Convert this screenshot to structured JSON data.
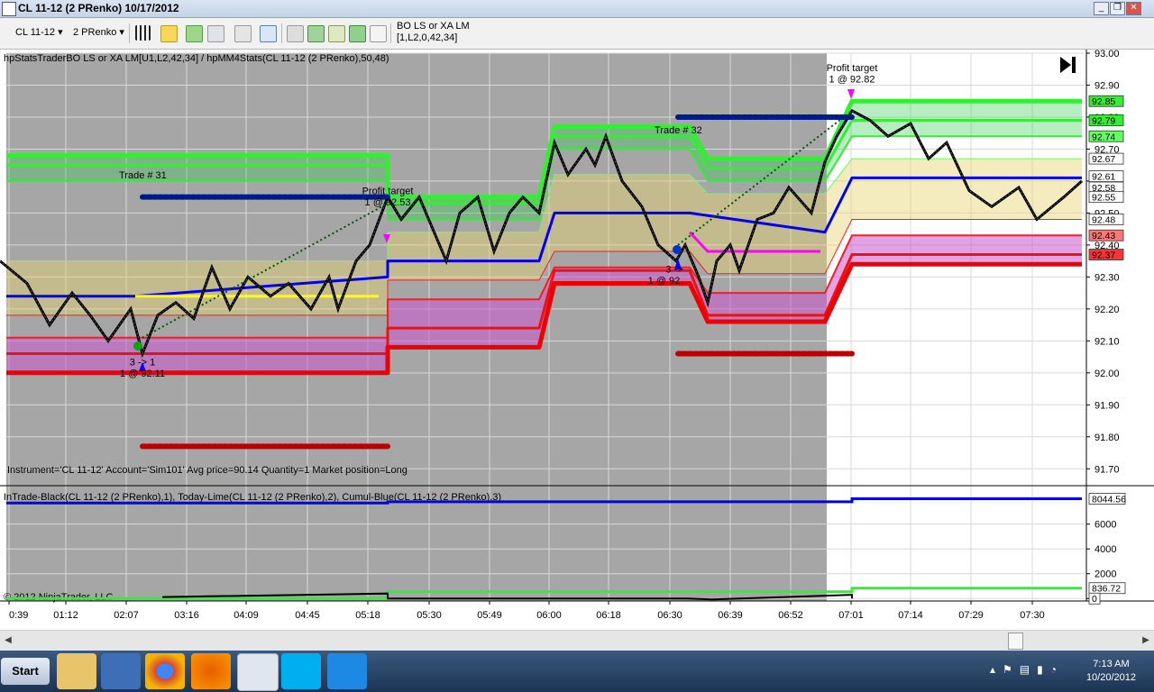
{
  "window": {
    "title": "CL 11-12 (2 PRenko)  10/17/2012"
  },
  "toolbar": {
    "instrument": "CL 11-12",
    "period": "2 PRenko",
    "strategy_name": "BO LS or XA LM",
    "strategy_params": "[1,L2,0,42,34]"
  },
  "chart_data": {
    "type": "line",
    "panel_price": {
      "indicator_title": "hpStatsTraderBO LS or XA LM[U1,L2,42,34] / hpMM4Stats(CL 11-12 (2 PRenko),50,48)",
      "ylim": [
        91.65,
        93.0
      ],
      "yticks": [
        "93.00",
        "92.90",
        "92.80",
        "92.70",
        "92.60",
        "92.50",
        "92.40",
        "92.30",
        "92.20",
        "92.10",
        "92.00",
        "91.90",
        "91.80",
        "91.70"
      ],
      "right_labels": [
        {
          "text": "92.85",
          "value": 92.85,
          "bg": "#33ee33"
        },
        {
          "text": "92.79",
          "value": 92.79,
          "bg": "#33ee33"
        },
        {
          "text": "92.74",
          "value": 92.74,
          "bg": "#66ff66"
        },
        {
          "text": "92.67",
          "value": 92.67,
          "bg": "#ffffff"
        },
        {
          "text": "92.61",
          "value": 92.615,
          "bg": "#ffffff"
        },
        {
          "text": "92.58",
          "value": 92.58,
          "bg": "#ffffff"
        },
        {
          "text": "92.55",
          "value": 92.55,
          "bg": "#ffffff"
        },
        {
          "text": "92.48",
          "value": 92.48,
          "bg": "#ffffff"
        },
        {
          "text": "92.43",
          "value": 92.43,
          "bg": "#ff7777"
        },
        {
          "text": "92.37",
          "value": 92.37,
          "bg": "#ff3333"
        }
      ],
      "annotations": [
        {
          "text": "Profit target",
          "x": "05:22",
          "value": 92.57
        },
        {
          "text": "1 @ 92.53",
          "x": "05:22",
          "value": 92.535
        },
        {
          "text": "Profit target",
          "x": "07:01",
          "value": 92.955
        },
        {
          "text": "1 @ 92.82",
          "x": "07:01",
          "value": 92.92
        },
        {
          "text": "Trade # 31",
          "x": "01:50",
          "value": 92.62
        },
        {
          "text": "Trade # 32",
          "x": "06:27",
          "value": 92.76
        },
        {
          "text": "3 -> 1",
          "x": "02:17",
          "value": 92.035
        },
        {
          "text": "1 @ 92.11",
          "x": "02:17",
          "value": 92.0
        },
        {
          "text": "3 ->",
          "x": "06:32",
          "value": 92.325
        },
        {
          "text": "1 @ 92.",
          "x": "06:31",
          "value": 92.29
        }
      ],
      "info_text": "Instrument='CL 11-12' Account='Sim101' Avg price=90.14 Quantity=1 Market position=Long",
      "price": [
        [
          0,
          92.35
        ],
        [
          30,
          92.28
        ],
        [
          55,
          92.15
        ],
        [
          80,
          92.25
        ],
        [
          100,
          92.18
        ],
        [
          120,
          92.1
        ],
        [
          145,
          92.2
        ],
        [
          158,
          92.06
        ],
        [
          175,
          92.18
        ],
        [
          195,
          92.22
        ],
        [
          215,
          92.17
        ],
        [
          235,
          92.33
        ],
        [
          255,
          92.2
        ],
        [
          275,
          92.3
        ],
        [
          300,
          92.24
        ],
        [
          320,
          92.28
        ],
        [
          345,
          92.2
        ],
        [
          365,
          92.3
        ],
        [
          375,
          92.2
        ],
        [
          395,
          92.35
        ],
        [
          410,
          92.4
        ],
        [
          430,
          92.55
        ],
        [
          445,
          92.48
        ],
        [
          465,
          92.55
        ],
        [
          480,
          92.45
        ],
        [
          495,
          92.35
        ],
        [
          510,
          92.5
        ],
        [
          530,
          92.55
        ],
        [
          548,
          92.38
        ],
        [
          565,
          92.5
        ],
        [
          580,
          92.55
        ],
        [
          598,
          92.5
        ],
        [
          615,
          92.72
        ],
        [
          630,
          92.62
        ],
        [
          650,
          92.7
        ],
        [
          660,
          92.65
        ],
        [
          672,
          92.74
        ],
        [
          690,
          92.6
        ],
        [
          712,
          92.52
        ],
        [
          730,
          92.4
        ],
        [
          750,
          92.35
        ],
        [
          760,
          92.4
        ],
        [
          775,
          92.3
        ],
        [
          785,
          92.22
        ],
        [
          795,
          92.35
        ],
        [
          810,
          92.4
        ],
        [
          820,
          92.32
        ],
        [
          840,
          92.48
        ],
        [
          858,
          92.5
        ],
        [
          875,
          92.58
        ],
        [
          900,
          92.5
        ],
        [
          915,
          92.66
        ],
        [
          928,
          92.74
        ],
        [
          945,
          92.82
        ],
        [
          965,
          92.79
        ],
        [
          985,
          92.74
        ],
        [
          1010,
          92.78
        ],
        [
          1030,
          92.67
        ],
        [
          1050,
          92.72
        ],
        [
          1075,
          92.57
        ],
        [
          1100,
          92.52
        ],
        [
          1130,
          92.58
        ],
        [
          1150,
          92.48
        ],
        [
          1180,
          92.55
        ],
        [
          1200,
          92.6
        ]
      ],
      "levels": [
        {
          "name": "green-top",
          "color": "#33ee33",
          "width": 5,
          "pts": [
            [
              7,
              92.68
            ],
            [
              430,
              92.68
            ],
            [
              430,
              92.55
            ],
            [
              598,
              92.55
            ],
            [
              615,
              92.77
            ],
            [
              765,
              92.77
            ],
            [
              785,
              92.67
            ],
            [
              915,
              92.67
            ],
            [
              945,
              92.85
            ],
            [
              1200,
              92.85
            ]
          ]
        },
        {
          "name": "green-2",
          "color": "#33ee33",
          "width": 3,
          "pts": [
            [
              7,
              92.65
            ],
            [
              430,
              92.65
            ],
            [
              430,
              92.53
            ],
            [
              598,
              92.53
            ],
            [
              615,
              92.74
            ],
            [
              765,
              92.74
            ],
            [
              785,
              92.64
            ],
            [
              915,
              92.64
            ],
            [
              945,
              92.79
            ],
            [
              1200,
              92.79
            ]
          ]
        },
        {
          "name": "green-3",
          "color": "#33ee33",
          "width": 2,
          "pts": [
            [
              7,
              92.6
            ],
            [
              430,
              92.6
            ],
            [
              430,
              92.48
            ],
            [
              598,
              92.48
            ],
            [
              615,
              92.7
            ],
            [
              765,
              92.7
            ],
            [
              785,
              92.6
            ],
            [
              915,
              92.6
            ],
            [
              945,
              92.74
            ],
            [
              1200,
              92.74
            ]
          ]
        },
        {
          "name": "green-4",
          "color": "#66ff66",
          "width": 1,
          "pts": [
            [
              7,
              92.35
            ],
            [
              430,
              92.35
            ],
            [
              430,
              92.44
            ],
            [
              598,
              92.44
            ],
            [
              615,
              92.62
            ],
            [
              765,
              92.62
            ],
            [
              785,
              92.56
            ],
            [
              915,
              92.56
            ],
            [
              945,
              92.67
            ],
            [
              1200,
              92.67
            ]
          ]
        },
        {
          "name": "blue-mid",
          "color": "#0000ee",
          "width": 3,
          "pts": [
            [
              7,
              92.24
            ],
            [
              150,
              92.24
            ],
            [
              430,
              92.3
            ],
            [
              430,
              92.35
            ],
            [
              598,
              92.35
            ],
            [
              615,
              92.5
            ],
            [
              745,
              92.5
            ],
            [
              765,
              92.5
            ],
            [
              765,
              92.5
            ],
            [
              915,
              92.44
            ],
            [
              945,
              92.61
            ],
            [
              1200,
              92.61
            ]
          ]
        },
        {
          "name": "yellow-mid",
          "color": "#ffff00",
          "width": 3,
          "pts": [
            [
              150,
              92.24
            ],
            [
              420,
              92.24
            ]
          ]
        },
        {
          "name": "red-1",
          "color": "#ee2222",
          "width": 1,
          "pts": [
            [
              7,
              92.18
            ],
            [
              430,
              92.18
            ],
            [
              430,
              92.29
            ],
            [
              598,
              92.29
            ],
            [
              615,
              92.38
            ],
            [
              765,
              92.38
            ],
            [
              785,
              92.31
            ],
            [
              915,
              92.31
            ],
            [
              945,
              92.48
            ],
            [
              1200,
              92.48
            ]
          ]
        },
        {
          "name": "red-2",
          "color": "#ee2222",
          "width": 2,
          "pts": [
            [
              7,
              92.11
            ],
            [
              430,
              92.11
            ],
            [
              430,
              92.23
            ],
            [
              598,
              92.23
            ],
            [
              615,
              92.33
            ],
            [
              765,
              92.33
            ],
            [
              785,
              92.25
            ],
            [
              915,
              92.25
            ],
            [
              945,
              92.43
            ],
            [
              1200,
              92.43
            ]
          ]
        },
        {
          "name": "red-3",
          "color": "#ee1111",
          "width": 3,
          "pts": [
            [
              7,
              92.06
            ],
            [
              430,
              92.06
            ],
            [
              430,
              92.14
            ],
            [
              598,
              92.14
            ],
            [
              615,
              92.32
            ],
            [
              765,
              92.32
            ],
            [
              785,
              92.18
            ],
            [
              915,
              92.18
            ],
            [
              945,
              92.37
            ],
            [
              1200,
              92.37
            ]
          ]
        },
        {
          "name": "red-4",
          "color": "#ee0000",
          "width": 5,
          "pts": [
            [
              7,
              92.0
            ],
            [
              430,
              92.0
            ],
            [
              430,
              92.08
            ],
            [
              598,
              92.08
            ],
            [
              615,
              92.28
            ],
            [
              765,
              92.28
            ],
            [
              785,
              92.16
            ],
            [
              915,
              92.16
            ],
            [
              945,
              92.34
            ],
            [
              1200,
              92.34
            ]
          ]
        }
      ],
      "bands": [
        {
          "color": "#33cc55",
          "opacity": 0.35,
          "top": "green-top",
          "bottom": "green-3"
        },
        {
          "color": "#e6d570",
          "opacity": 0.45,
          "top": "green-4",
          "bottom": "red-1"
        },
        {
          "color": "#cc55cc",
          "opacity": 0.55,
          "top": "red-2",
          "bottom": "red-4"
        }
      ],
      "dotted_rows": [
        {
          "color": "#001a88",
          "value": 92.55,
          "x1": "02:17",
          "x2": "05:22"
        },
        {
          "color": "#001a88",
          "value": 92.8,
          "x1": "06:30",
          "x2": "07:01"
        },
        {
          "color": "#bb0000",
          "value": 92.06,
          "x1": "06:30",
          "x2": "07:01"
        },
        {
          "color": "#bb0000",
          "value": 91.77,
          "x1": "02:17",
          "x2": "05:22"
        }
      ]
    },
    "panel_pnl": {
      "indicator_title": "InTrade-Black(CL 11-12 (2 PRenko),1), Today-Lime(CL 11-12 (2 PRenko),2), Cumul-Blue(CL 11-12 (2 PRenko),3)",
      "ylim": [
        -200,
        9100
      ],
      "yticks": [
        "6000",
        "4000",
        "2000",
        "0"
      ],
      "right_labels": [
        {
          "text": "8044.56",
          "value": 8044.56
        },
        {
          "text": "836.72",
          "value": 836.72
        },
        {
          "text": "0",
          "value": 0
        }
      ],
      "series": [
        {
          "name": "Cumul",
          "color": "#0000ee",
          "pts": [
            [
              7,
              7700
            ],
            [
              430,
              7700
            ],
            [
              430,
              7800
            ],
            [
              945,
              7800
            ],
            [
              945,
              8044.56
            ],
            [
              1200,
              8044.56
            ]
          ]
        },
        {
          "name": "Today",
          "color": "#33ee33",
          "pts": [
            [
              7,
              0
            ],
            [
              430,
              0
            ],
            [
              430,
              540
            ],
            [
              945,
              540
            ],
            [
              945,
              836.72
            ],
            [
              1200,
              836.72
            ]
          ]
        },
        {
          "name": "InTrade",
          "color": "#000000",
          "pts": [
            [
              180,
              120
            ],
            [
              430,
              400
            ],
            [
              430,
              0
            ],
            [
              760,
              0
            ],
            [
              790,
              -80
            ],
            [
              945,
              300
            ],
            [
              945,
              0
            ]
          ]
        }
      ]
    },
    "x_labels": [
      "0:39",
      "01:12",
      "02:07",
      "03:16",
      "04:09",
      "04:45",
      "05:18",
      "05:30",
      "05:49",
      "06:00",
      "06:18",
      "06:30",
      "06:39",
      "06:52",
      "07:01",
      "07:14",
      "07:29",
      "07:30"
    ],
    "session_shade": {
      "from": "0:39",
      "to": "06:52",
      "color": "#a6a6a6"
    },
    "copyright": "© 2012 NinjaTrader, LLC"
  },
  "taskbar": {
    "start_label": "Start",
    "time": "7:13 AM",
    "date": "10/20/2012"
  }
}
